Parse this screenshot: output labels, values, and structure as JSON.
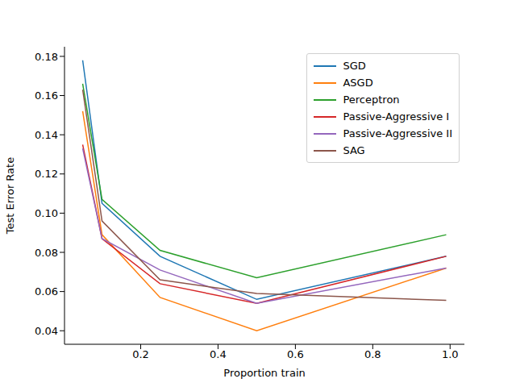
{
  "chart_data": {
    "type": "line",
    "x": [
      0.05,
      0.1,
      0.25,
      0.5,
      0.99
    ],
    "x_label": "Proportion train",
    "y_label": "Test Error Rate",
    "xlim": [
      0.003,
      1.037
    ],
    "ylim": [
      0.0331,
      0.1849
    ],
    "xticks": [
      0.2,
      0.4,
      0.6,
      0.8,
      {
        "value": 1,
        "label": "1.0"
      }
    ],
    "yticks": [
      0.04,
      0.06,
      0.08,
      {
        "value": 0.1,
        "label": "0.10"
      },
      0.12,
      0.14,
      0.16,
      0.18
    ],
    "grid": false,
    "legend": "upper right",
    "series": [
      {
        "name": "SGD",
        "color": "#1f77b4",
        "values": [
          0.178,
          0.105,
          0.078,
          0.056,
          0.078
        ]
      },
      {
        "name": "ASGD",
        "color": "#ff7f0e",
        "values": [
          0.152,
          0.089,
          0.057,
          0.04,
          0.072
        ]
      },
      {
        "name": "Perceptron",
        "color": "#2ca02c",
        "values": [
          0.166,
          0.107,
          0.081,
          0.067,
          0.089
        ]
      },
      {
        "name": "Passive-Aggressive I",
        "color": "#d62728",
        "values": [
          0.135,
          0.087,
          0.064,
          0.054,
          0.078
        ]
      },
      {
        "name": "Passive-Aggressive II",
        "color": "#9467bd",
        "values": [
          0.133,
          0.087,
          0.071,
          0.054,
          0.072
        ]
      },
      {
        "name": "SAG",
        "color": "#8c564b",
        "values": [
          0.163,
          0.096,
          0.066,
          0.059,
          0.0555
        ]
      }
    ]
  }
}
